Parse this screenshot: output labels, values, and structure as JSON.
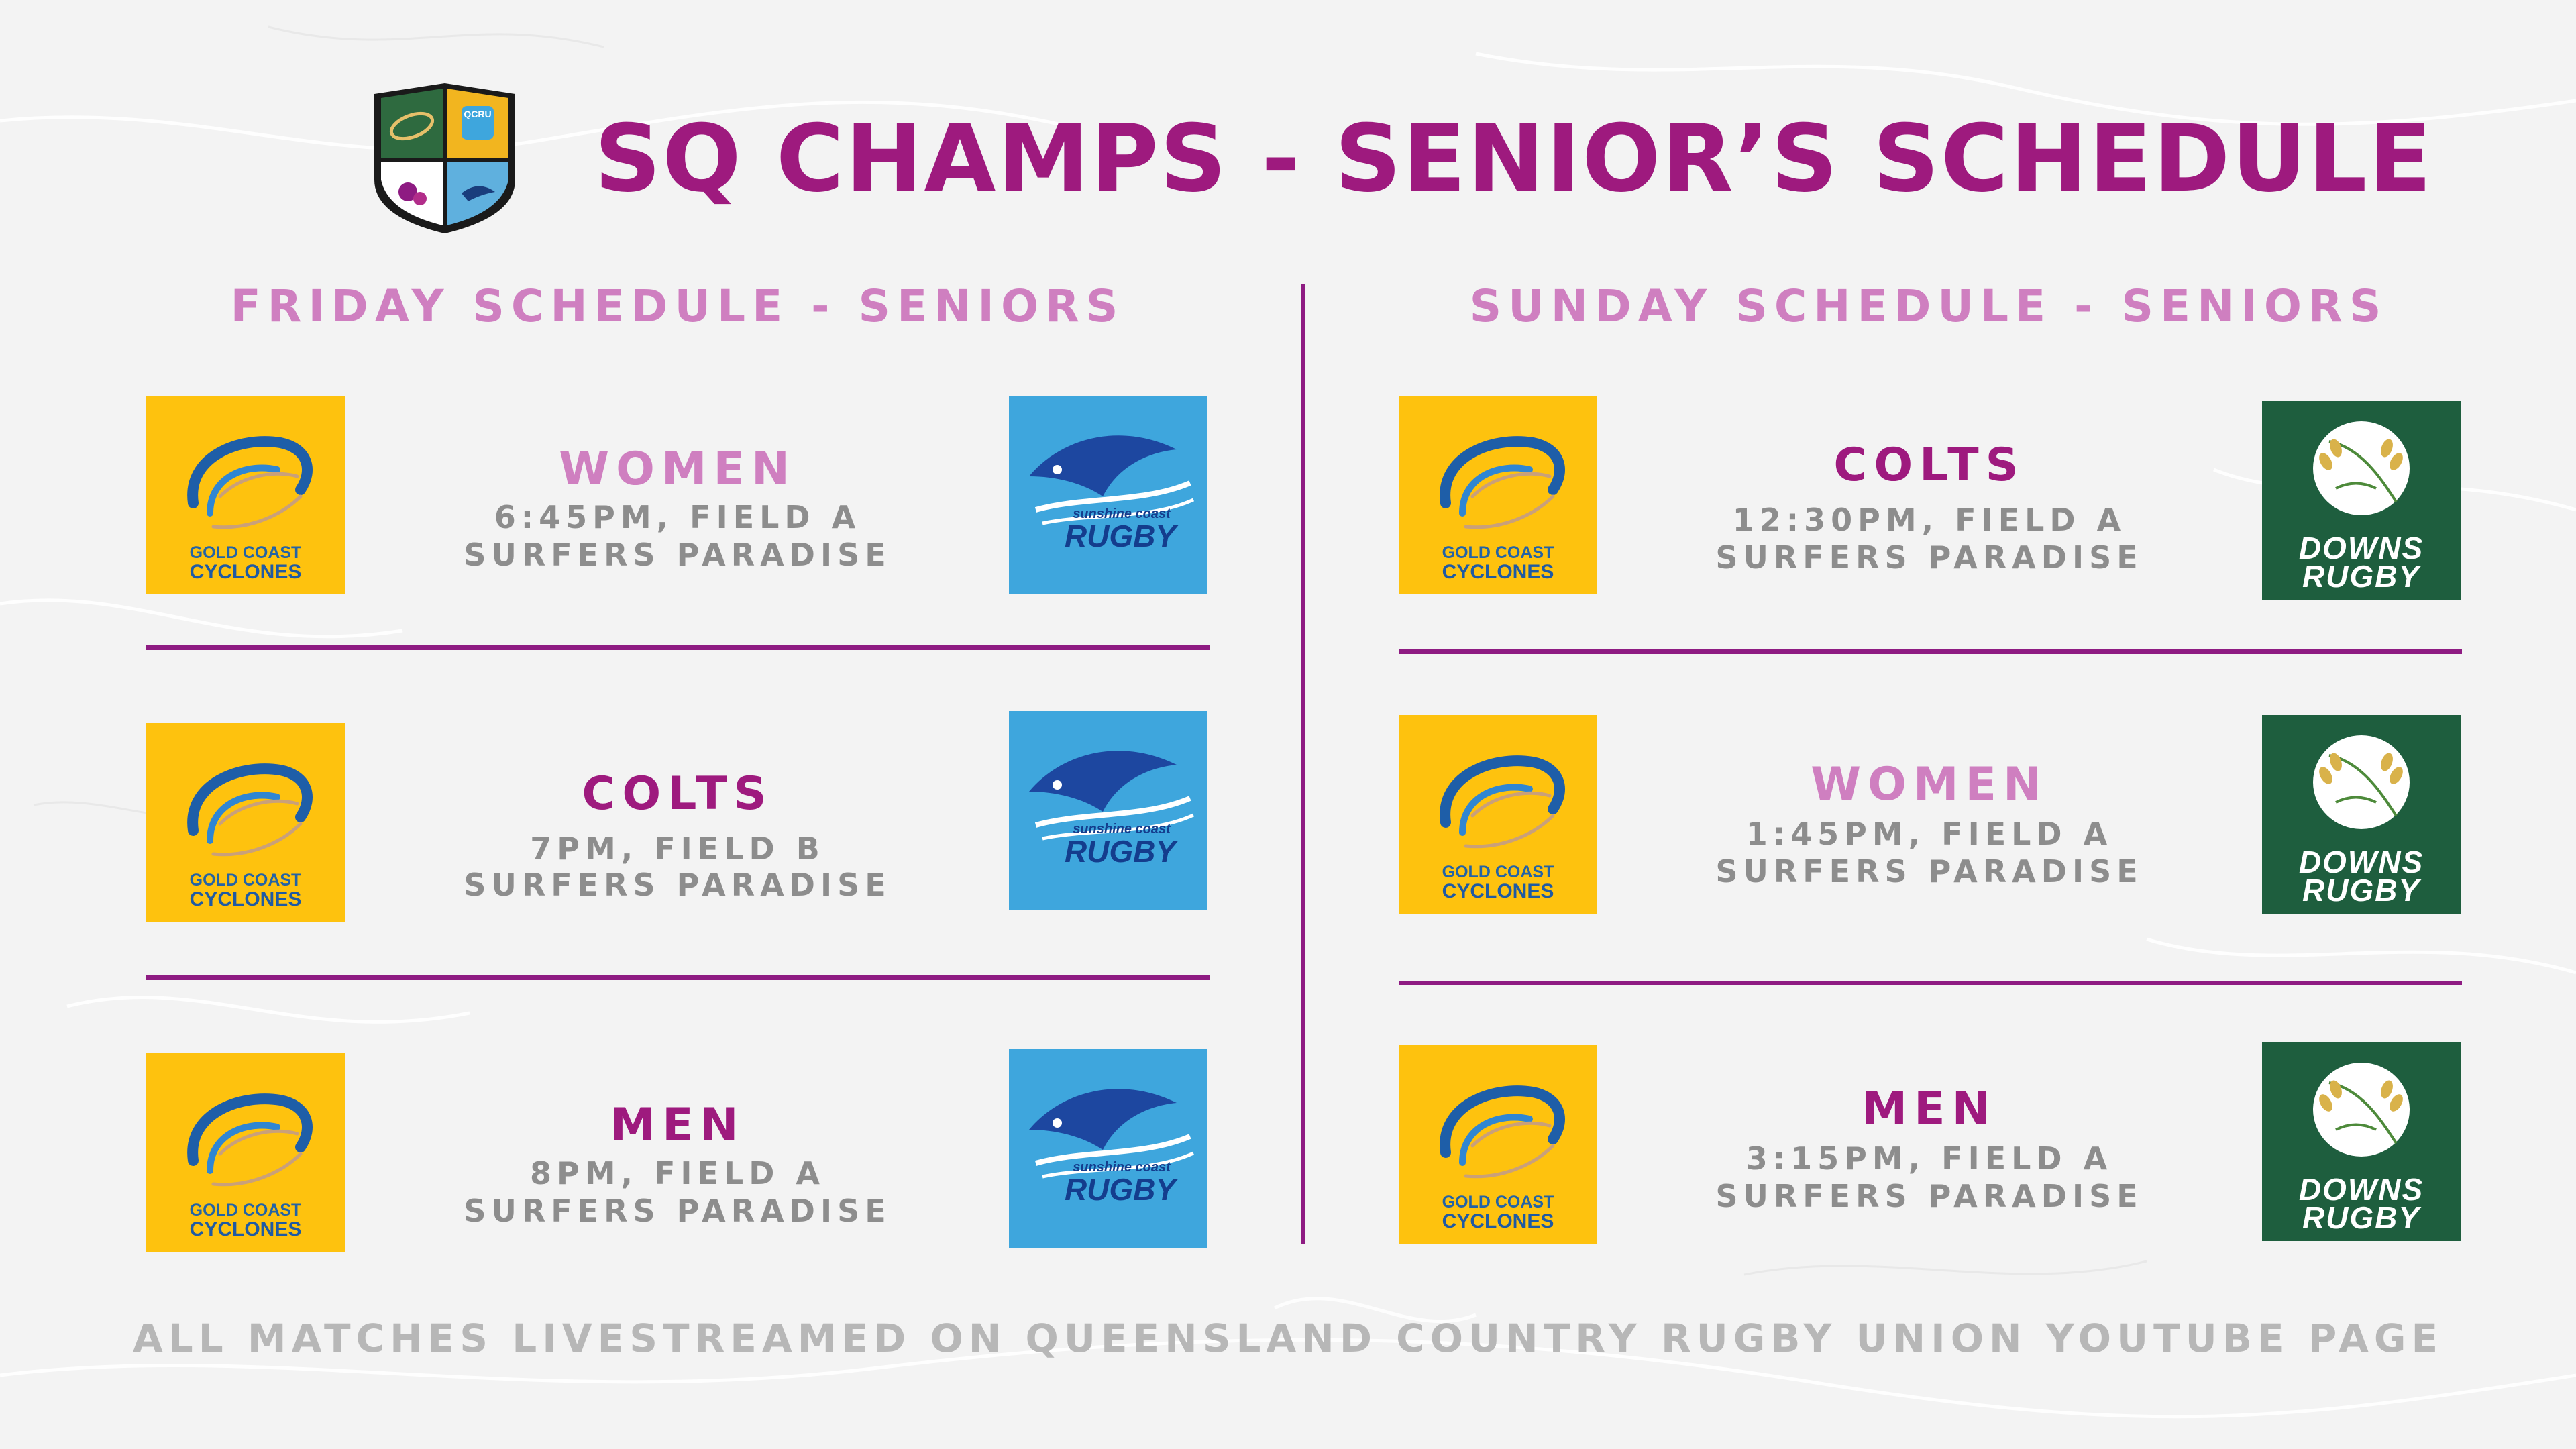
{
  "title": "SQ CHAMPS - SENIOR’S SCHEDULE",
  "friday": {
    "heading": "FRIDAY SCHEDULE - SENIORS",
    "matches": [
      {
        "category": "WOMEN",
        "time": "6:45PM, FIELD A",
        "venue": "SURFERS PARADISE",
        "home": "Gold Coast Cyclones",
        "away": "Sunshine Coast Rugby"
      },
      {
        "category": "COLTS",
        "time": "7PM, FIELD B",
        "venue": "SURFERS PARADISE",
        "home": "Gold Coast Cyclones",
        "away": "Sunshine Coast Rugby"
      },
      {
        "category": "MEN",
        "time": "8PM, FIELD A",
        "venue": "SURFERS PARADISE",
        "home": "Gold Coast Cyclones",
        "away": "Sunshine Coast Rugby"
      }
    ]
  },
  "sunday": {
    "heading": "SUNDAY SCHEDULE - SENIORS",
    "matches": [
      {
        "category": "COLTS",
        "time": "12:30PM, FIELD A",
        "venue": "SURFERS PARADISE",
        "home": "Gold Coast Cyclones",
        "away": "Downs Rugby"
      },
      {
        "category": "WOMEN",
        "time": "1:45PM, FIELD A",
        "venue": "SURFERS PARADISE",
        "home": "Gold Coast Cyclones",
        "away": "Downs Rugby"
      },
      {
        "category": "MEN",
        "time": "3:15PM, FIELD A",
        "venue": "SURFERS PARADISE",
        "home": "Gold Coast Cyclones",
        "away": "Downs Rugby"
      }
    ]
  },
  "logos": {
    "gold_coast": {
      "line1": "GOLD COAST",
      "line2": "CYCLONES"
    },
    "sunshine_coast": {
      "line1": "sunshine coast",
      "line2": "RUGBY"
    },
    "downs": {
      "line1": "DOWNS",
      "line2": "RUGBY"
    },
    "crest_banner": "QCRU"
  },
  "footer": "ALL MATCHES LIVESTREAMED ON QUEENSLAND COUNTRY RUGBY UNION YOUTUBE PAGE",
  "colors": {
    "title": "#9e1a7e",
    "heading": "#cf7fc0",
    "divider": "#8e1b82",
    "text_gray": "#8d8d8d",
    "footer": "#b7b7b7",
    "gc_yellow": "#fec20e",
    "sc_blue": "#3ea6dd",
    "downs_green": "#1e5e3e"
  }
}
